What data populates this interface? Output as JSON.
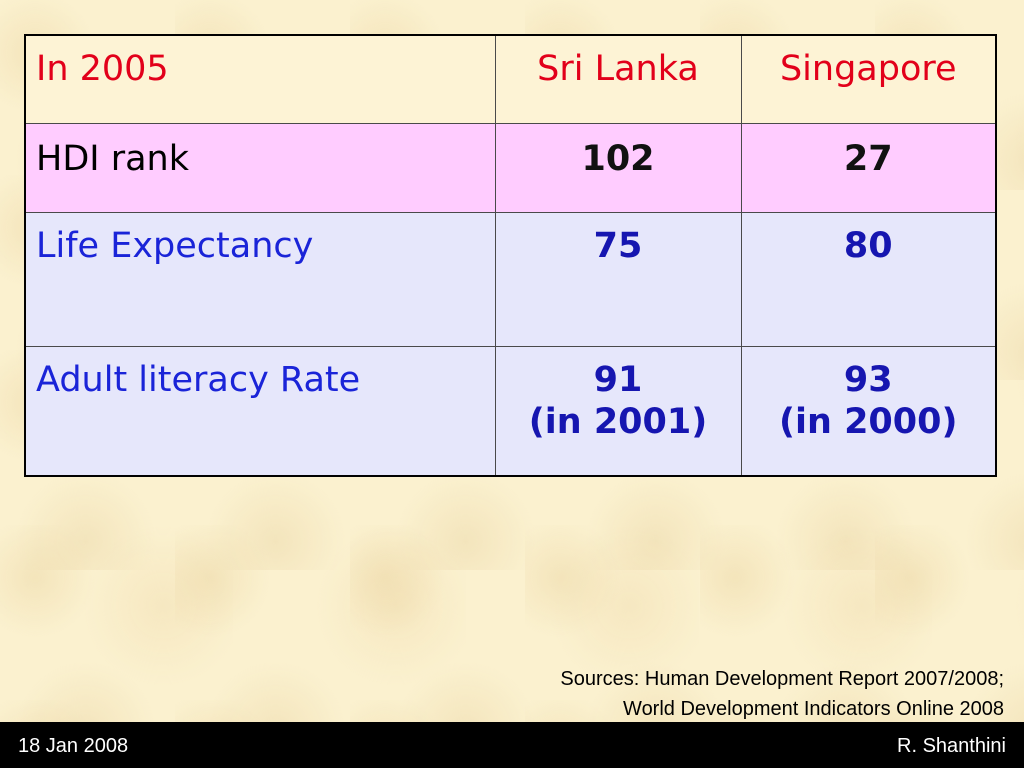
{
  "table": {
    "header": [
      "In 2005",
      "Sri Lanka",
      "Singapore"
    ],
    "rows": [
      {
        "label": "HDI rank",
        "sri_lanka": "102",
        "singapore": "27"
      },
      {
        "label": "Life Expectancy",
        "sri_lanka": "75",
        "singapore": "80"
      },
      {
        "label": "Adult literacy Rate",
        "sri_lanka": "91",
        "sri_lanka_note": "(in 2001)",
        "singapore": "93",
        "singapore_note": "(in 2000)"
      }
    ]
  },
  "sources": {
    "line1": "Sources: Human Development Report 2007/2008;",
    "line2": "World Development Indicators Online 2008"
  },
  "footer": {
    "date": "18 Jan 2008",
    "author": "R. Shanthini"
  },
  "colors": {
    "header_text": "#e2001a",
    "hdi_row_bg": "#ffccff",
    "blue_row_bg": "#e6e7fb",
    "blue_text": "#1a24d8",
    "background": "#fbf1cf"
  }
}
